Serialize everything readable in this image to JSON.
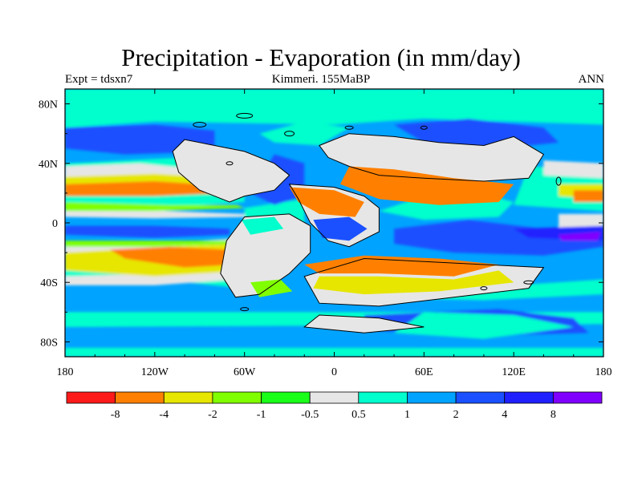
{
  "title": "Precipitation - Evaporation (in mm/day)",
  "subtitle_left": "Expt = tdsxn7",
  "subtitle_center": "Kimmeri. 155MaBP",
  "subtitle_right": "ANN",
  "axes": {
    "lon_ticks": [
      {
        "lon": -180,
        "label": "180"
      },
      {
        "lon": -120,
        "label": "120W"
      },
      {
        "lon": -60,
        "label": "60W"
      },
      {
        "lon": 0,
        "label": "0"
      },
      {
        "lon": 60,
        "label": "60E"
      },
      {
        "lon": 120,
        "label": "120E"
      },
      {
        "lon": 180,
        "label": "180"
      }
    ],
    "lat_ticks": [
      {
        "lat": 80,
        "label": "80N"
      },
      {
        "lat": 40,
        "label": "40N"
      },
      {
        "lat": 0,
        "label": "0"
      },
      {
        "lat": -40,
        "label": "40S"
      },
      {
        "lat": -80,
        "label": "80S"
      }
    ],
    "lon_range": [
      -180,
      180
    ],
    "lat_range": [
      -90,
      90
    ]
  },
  "colorbar": {
    "colors": [
      "#ff1a1a",
      "#ff8000",
      "#e6e600",
      "#80ff00",
      "#1aff1a",
      "#e6e6e6",
      "#00ffcc",
      "#00a3ff",
      "#1a50ff",
      "#2020ff",
      "#8000ff"
    ],
    "labels": [
      "-8",
      "-4",
      "-2",
      "-1",
      "-0.5",
      "0.5",
      "1",
      "2",
      "4",
      "8"
    ]
  },
  "background_color": "#00a3ff"
}
